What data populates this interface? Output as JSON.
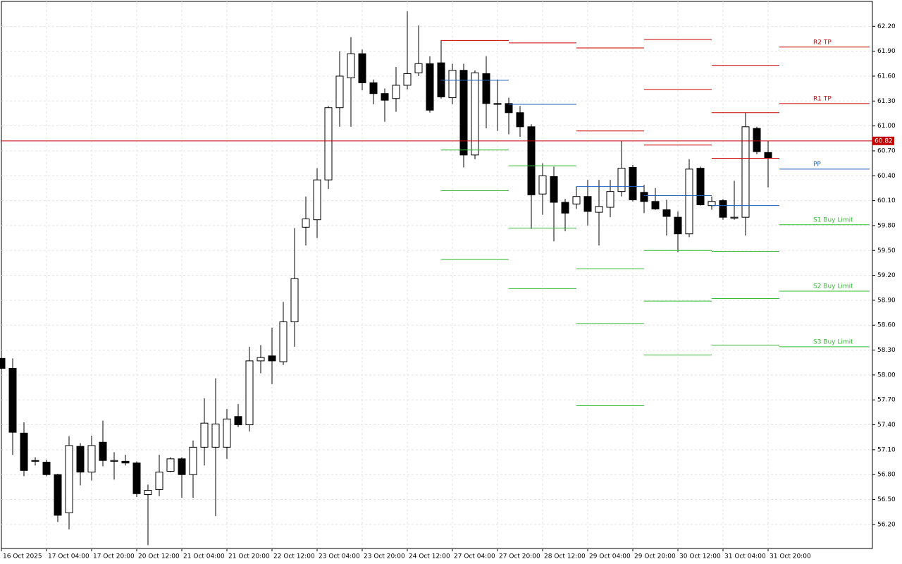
{
  "chart_data": {
    "type": "candlestick",
    "categories": [
      "16 Oct 2025",
      null,
      null,
      null,
      "17 Oct 04:00",
      null,
      null,
      null,
      "17 Oct 20:00",
      null,
      null,
      null,
      "20 Oct 12:00",
      null,
      null,
      null,
      "21 Oct 04:00",
      null,
      null,
      null,
      "21 Oct 20:00",
      null,
      null,
      null,
      "22 Oct 12:00",
      null,
      null,
      null,
      "23 Oct 04:00",
      null,
      null,
      null,
      "23 Oct 20:00",
      null,
      null,
      null,
      "24 Oct 12:00",
      null,
      null,
      null,
      "27 Oct 04:00",
      null,
      null,
      null,
      "27 Oct 20:00",
      null,
      null,
      null,
      "28 Oct 12:00",
      null,
      null,
      null,
      "29 Oct 04:00",
      null,
      null,
      null,
      "29 Oct 20:00",
      null,
      null,
      null,
      "30 Oct 12:00",
      null,
      null,
      null,
      "31 Oct 04:00",
      null,
      null,
      null,
      "31 Oct 20:00"
    ],
    "open": [
      58.2,
      58.08,
      57.3,
      56.97,
      56.95,
      56.8,
      56.34,
      57.14,
      56.83,
      57.19,
      56.96,
      56.96,
      56.94,
      56.56,
      56.62,
      56.84,
      56.99,
      56.8,
      57.13,
      57.13,
      57.13,
      57.5,
      57.4,
      58.17,
      58.23,
      58.16,
      58.64,
      59.78,
      59.87,
      60.35,
      61.22,
      61.58,
      61.87,
      61.52,
      61.39,
      61.33,
      61.49,
      61.64,
      61.75,
      61.76,
      61.34,
      61.67,
      60.65,
      61.63,
      61.27,
      61.27,
      61.16,
      60.99,
      60.18,
      60.39,
      60.08,
      60.06,
      60.15,
      59.96,
      60.02,
      60.21,
      60.5,
      60.2,
      60.09,
      59.99,
      59.9,
      59.7,
      60.49,
      60.04,
      60.1,
      59.89,
      59.9,
      60.97,
      60.68
    ],
    "high": [
      58.22,
      58.2,
      57.43,
      57.01,
      56.98,
      56.81,
      57.26,
      57.18,
      57.27,
      57.45,
      57.07,
      57.04,
      56.96,
      56.68,
      57.04,
      57.01,
      57.01,
      57.21,
      57.72,
      57.96,
      57.59,
      57.65,
      58.34,
      58.36,
      58.57,
      58.88,
      59.77,
      60.15,
      60.49,
      61.24,
      61.9,
      62.07,
      61.92,
      61.56,
      61.45,
      61.71,
      62.38,
      62.21,
      61.84,
      62.03,
      61.75,
      61.75,
      61.67,
      61.84,
      61.56,
      61.34,
      61.24,
      61.02,
      60.55,
      60.51,
      60.12,
      60.27,
      60.35,
      60.35,
      60.35,
      60.82,
      60.53,
      60.29,
      60.25,
      60.11,
      59.97,
      60.6,
      60.51,
      60.15,
      60.12,
      60.34,
      61.16,
      60.99,
      60.82
    ],
    "low": [
      58.06,
      57.04,
      56.78,
      56.91,
      56.78,
      56.23,
      56.14,
      56.67,
      56.73,
      56.9,
      56.74,
      56.91,
      56.53,
      55.95,
      56.54,
      56.83,
      56.52,
      56.52,
      56.91,
      56.3,
      56.99,
      57.37,
      57.32,
      58.02,
      57.89,
      58.12,
      58.34,
      59.56,
      59.65,
      60.24,
      60.99,
      60.99,
      61.43,
      61.26,
      61.05,
      61.17,
      61.44,
      61.6,
      61.16,
      61.33,
      61.26,
      60.5,
      60.6,
      60.97,
      60.94,
      60.9,
      60.87,
      59.76,
      59.93,
      59.61,
      59.73,
      60.0,
      59.8,
      59.56,
      59.9,
      60.15,
      60.09,
      59.95,
      59.99,
      59.68,
      59.48,
      59.66,
      60.04,
      59.99,
      59.87,
      59.87,
      59.68,
      60.66,
      60.26
    ],
    "close": [
      58.08,
      57.31,
      56.85,
      56.96,
      56.8,
      56.31,
      57.15,
      56.83,
      57.15,
      56.97,
      56.97,
      56.94,
      56.57,
      56.61,
      56.83,
      56.99,
      56.8,
      57.13,
      57.42,
      57.41,
      57.47,
      57.4,
      58.17,
      58.21,
      58.17,
      58.64,
      59.16,
      59.88,
      60.35,
      61.22,
      61.6,
      61.87,
      61.52,
      61.39,
      61.31,
      61.49,
      61.63,
      61.75,
      61.19,
      61.35,
      61.67,
      60.65,
      61.64,
      61.27,
      61.26,
      61.16,
      60.99,
      60.17,
      60.4,
      60.08,
      59.95,
      60.15,
      59.97,
      60.03,
      60.21,
      60.49,
      60.11,
      60.09,
      60.0,
      59.91,
      59.7,
      60.48,
      60.05,
      60.09,
      59.9,
      59.9,
      60.99,
      60.69,
      60.61
    ],
    "up_color": "#ffffff",
    "down_color": "#000000",
    "candle_stroke": "#000000",
    "last_price": 60.82,
    "last_price_color": "#c00000",
    "levels": [
      {
        "start": 39,
        "end": 45,
        "resistance": [
          62.03
        ],
        "pivot": 61.55,
        "support": [
          60.71,
          60.22,
          59.39
        ]
      },
      {
        "start": 45,
        "end": 51,
        "resistance": [
          62.0
        ],
        "pivot": 61.26,
        "support": [
          60.52,
          59.77,
          59.04
        ]
      },
      {
        "start": 51,
        "end": 57,
        "resistance": [
          61.94,
          60.94
        ],
        "pivot": 60.27,
        "support": [
          59.28,
          58.62,
          57.63
        ]
      },
      {
        "start": 57,
        "end": 63,
        "resistance": [
          62.04,
          61.44,
          60.77
        ],
        "pivot": 60.16,
        "support": [
          59.5,
          58.89,
          58.24
        ]
      },
      {
        "start": 63,
        "end": 69,
        "resistance": [
          61.73,
          61.16,
          60.61
        ],
        "pivot": 60.04,
        "support": [
          59.49,
          58.92,
          58.36
        ]
      },
      {
        "start": 69,
        "end": 77,
        "resistance": [
          {
            "value": 61.95,
            "label": "R2 TP"
          },
          {
            "value": 61.27,
            "label": "R1 TP"
          }
        ],
        "pivot": {
          "value": 60.48,
          "label": "PP"
        },
        "support": [
          {
            "value": 59.81,
            "label": "S1 Buy Limit"
          },
          {
            "value": 59.01,
            "label": "S2 Buy Limit"
          },
          {
            "value": 58.34,
            "label": "S3 Buy Limit"
          }
        ]
      }
    ],
    "resistance_color": "#cc0000",
    "pivot_color": "#1f5fbf",
    "support_color": "#33bb33",
    "xlim": [
      0,
      77.25
    ],
    "ylim": [
      55.91,
      62.5
    ],
    "yticks": [
      {
        "value": 56.2,
        "label": "56.20"
      },
      {
        "value": 56.5,
        "label": "56.50"
      },
      {
        "value": 56.8,
        "label": "56.80"
      },
      {
        "value": 57.1,
        "label": "57.10"
      },
      {
        "value": 57.4,
        "label": "57.40"
      },
      {
        "value": 57.7,
        "label": "57.70"
      },
      {
        "value": 58.0,
        "label": "58.00"
      },
      {
        "value": 58.3,
        "label": "58.30"
      },
      {
        "value": 58.6,
        "label": "58.60"
      },
      {
        "value": 58.9,
        "label": "58.90"
      },
      {
        "value": 59.2,
        "label": "59.20"
      },
      {
        "value": 59.5,
        "label": "59.50"
      },
      {
        "value": 59.8,
        "label": "59.80"
      },
      {
        "value": 60.1,
        "label": "60.10"
      },
      {
        "value": 60.4,
        "label": "60.40"
      },
      {
        "value": 60.7,
        "label": "60.70"
      },
      {
        "value": 61.0,
        "label": "61.00"
      },
      {
        "value": 61.3,
        "label": "61.30"
      },
      {
        "value": 61.6,
        "label": "61.60"
      },
      {
        "value": 61.9,
        "label": "61.90"
      },
      {
        "value": 62.2,
        "label": "62.20"
      }
    ],
    "grid": true
  }
}
